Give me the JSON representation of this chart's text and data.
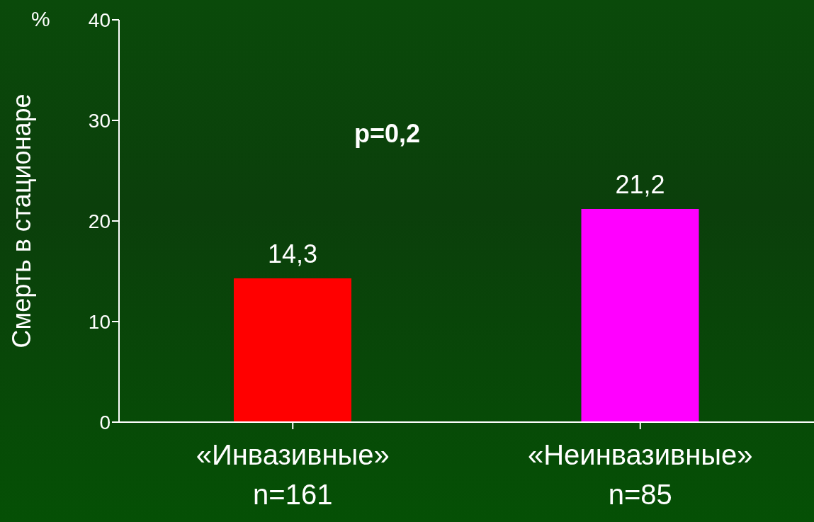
{
  "chart_data": {
    "type": "bar",
    "ylabel": "Смерть в стационаре",
    "categories": [
      "«Инвазивные»\nn=161",
      "«Неинвазивные»\nn=85"
    ],
    "values": [
      14.3,
      21.2
    ],
    "colors": [
      "#ff0000",
      "#ff00ff"
    ],
    "value_labels": [
      "14,3",
      "21,2"
    ],
    "ylim": [
      0,
      40
    ],
    "yticks": [
      0,
      10,
      20,
      30,
      40
    ],
    "annotations": [
      "p=0,2",
      "%"
    ]
  }
}
